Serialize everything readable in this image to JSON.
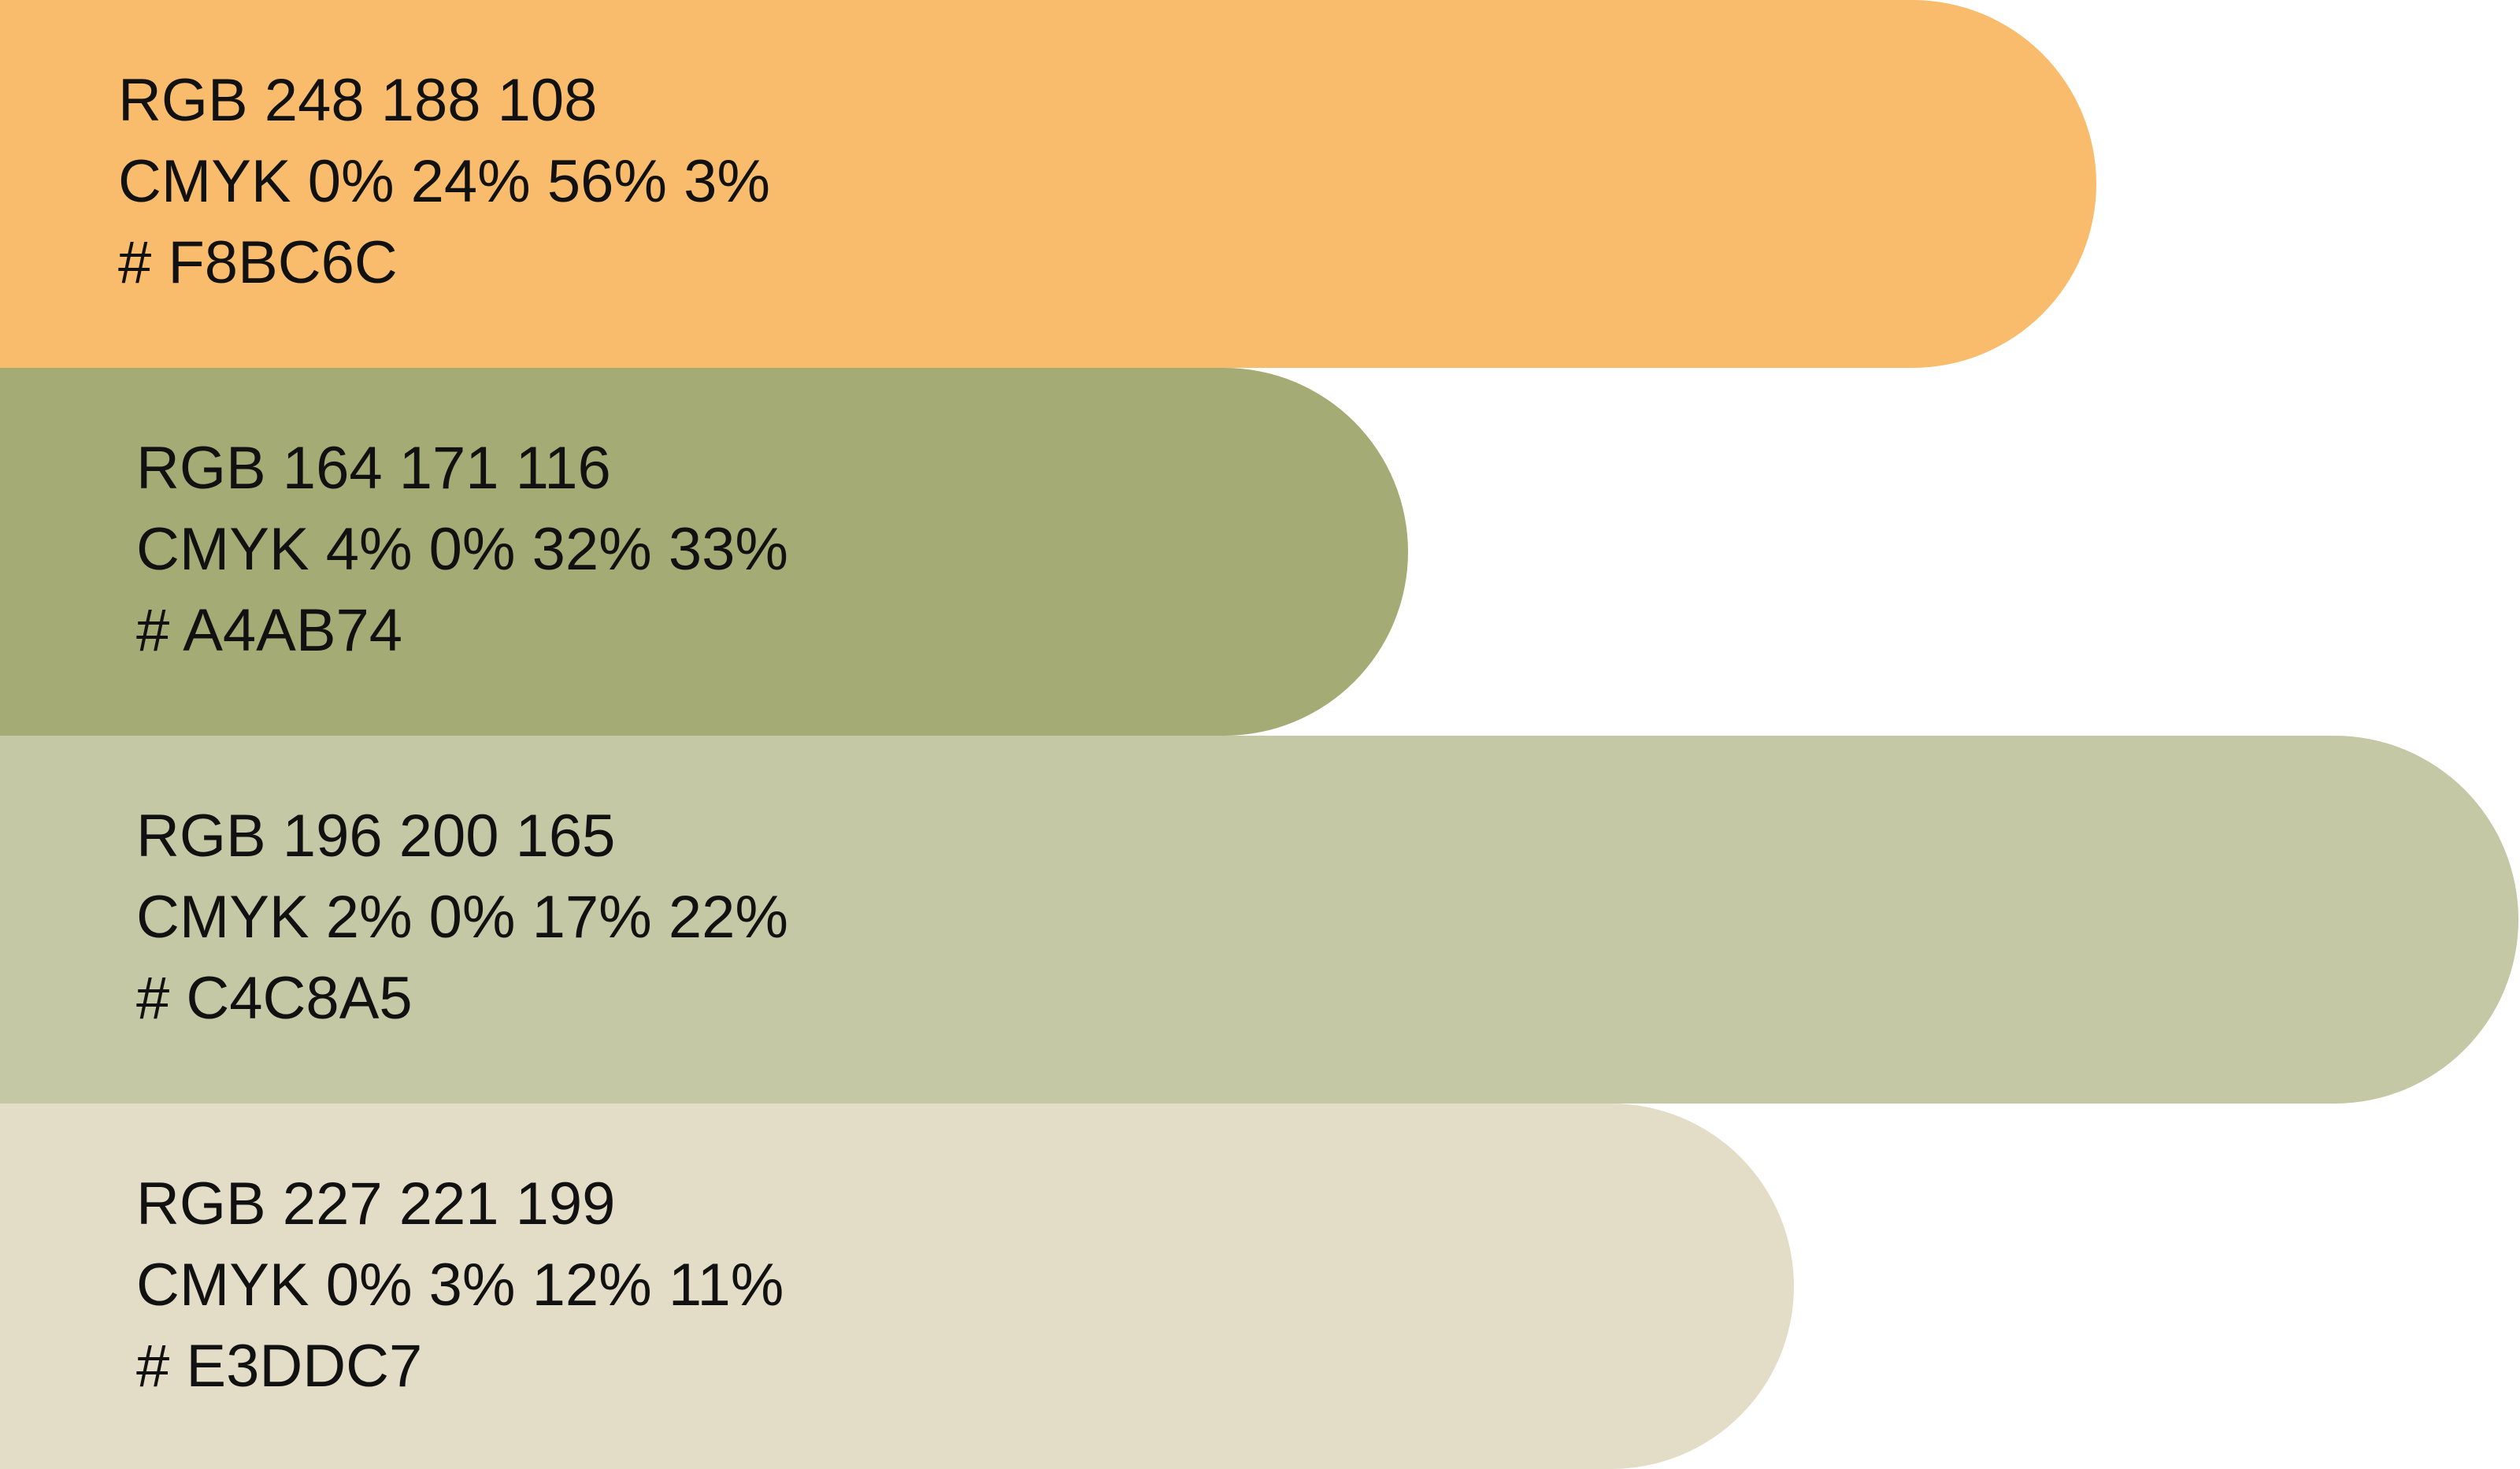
{
  "swatches": [
    {
      "color": "#F8BC6C",
      "rgb": "RGB 248 188 108",
      "cmyk": "CMYK 0% 24% 56% 3%",
      "hex": "# F8BC6C"
    },
    {
      "color": "#A4AB74",
      "rgb": "RGB 164 171 116",
      "cmyk": "CMYK 4% 0% 32% 33%",
      "hex": "# A4AB74"
    },
    {
      "color": "#C4C8A5",
      "rgb": "RGB 196 200 165",
      "cmyk": "CMYK 2% 0% 17% 22%",
      "hex": "# C4C8A5"
    },
    {
      "color": "#E3DDC7",
      "rgb": "RGB 227 221 199",
      "cmyk": "CMYK 0% 3% 12% 11%",
      "hex": "# E3DDC7"
    }
  ]
}
